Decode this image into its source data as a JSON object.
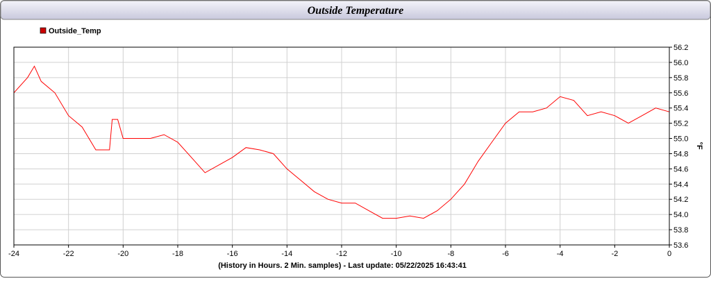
{
  "chart_data": {
    "type": "line",
    "title": "Outside Temperature",
    "x_label": "(History in Hours. 2 Min. samples) - Last update: 05/22/2025 16:43:41",
    "y_label": "°F",
    "x": [
      -24,
      -23.5,
      -23.25,
      -23,
      -22.5,
      -22,
      -21.5,
      -21,
      -20.5,
      -20.4,
      -20.2,
      -20,
      -19.5,
      -19,
      -18.5,
      -18,
      -17.5,
      -17,
      -16.5,
      -16,
      -15.5,
      -15,
      -14.5,
      -14,
      -13.5,
      -13,
      -12.5,
      -12,
      -11.5,
      -11,
      -10.5,
      -10,
      -9.5,
      -9,
      -8.5,
      -8,
      -7.5,
      -7,
      -6.5,
      -6,
      -5.5,
      -5,
      -4.5,
      -4,
      -3.5,
      -3,
      -2.5,
      -2,
      -1.5,
      -1,
      -0.5,
      0
    ],
    "series": [
      {
        "name": "Outside_Temp",
        "color": "#ff0000",
        "values": [
          55.6,
          55.8,
          55.95,
          55.75,
          55.6,
          55.3,
          55.15,
          54.85,
          54.85,
          55.25,
          55.25,
          55.0,
          55.0,
          55.0,
          55.05,
          54.95,
          54.75,
          54.55,
          54.65,
          54.75,
          54.88,
          54.85,
          54.8,
          54.6,
          54.45,
          54.3,
          54.2,
          54.15,
          54.15,
          54.05,
          53.95,
          53.95,
          53.98,
          53.95,
          54.05,
          54.2,
          54.4,
          54.7,
          54.95,
          55.2,
          55.35,
          55.35,
          55.4,
          55.55,
          55.5,
          55.3,
          55.35,
          55.3,
          55.2,
          55.3,
          55.4,
          55.35
        ]
      }
    ],
    "xlim": [
      -24,
      0
    ],
    "xticks": [
      -24,
      -22,
      -20,
      -18,
      -16,
      -14,
      -12,
      -10,
      -8,
      -6,
      -4,
      -2,
      0
    ],
    "ylim": [
      53.6,
      56.2
    ],
    "yticks": [
      {
        "value": 53.6,
        "label": "53.6"
      },
      53.8,
      {
        "value": 54.0,
        "label": "54.0"
      },
      54.2,
      54.4,
      54.6,
      54.8,
      {
        "value": 55.0,
        "label": "55.0"
      },
      55.2,
      55.4,
      55.6,
      55.8,
      {
        "value": 56.0,
        "label": "56.0"
      },
      56.2
    ],
    "grid": true,
    "legend": "top-left"
  }
}
